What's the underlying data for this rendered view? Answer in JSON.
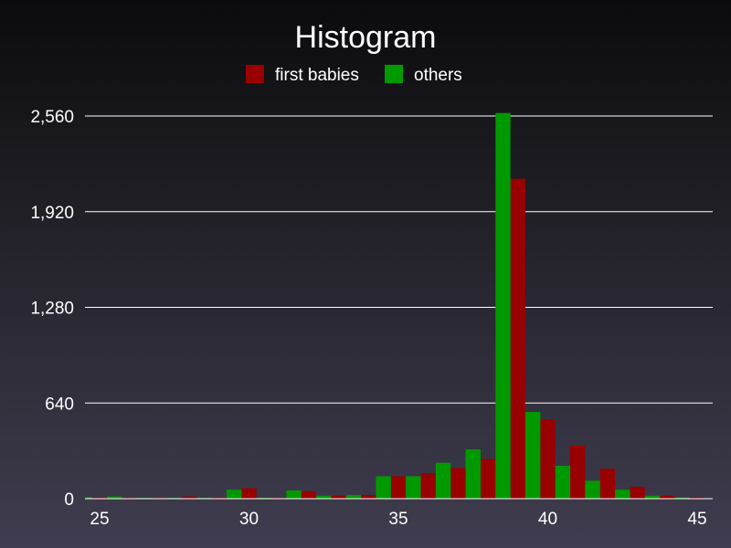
{
  "chart_data": {
    "type": "bar",
    "title": "Histogram",
    "xlabel": "",
    "ylabel": "",
    "xlim": [
      25,
      45
    ],
    "ylim": [
      0,
      2560
    ],
    "x_ticks": [
      25,
      30,
      35,
      40,
      45
    ],
    "y_ticks": [
      0,
      640,
      1280,
      1920,
      2560
    ],
    "y_tick_labels": [
      "0",
      "640",
      "1,280",
      "1,920",
      "2,560"
    ],
    "grid": true,
    "legend": "top-center",
    "series": [
      {
        "name": "first babies",
        "color": "#990000",
        "x": [
          25,
          26,
          27,
          28,
          29,
          30,
          31,
          32,
          33,
          34,
          35,
          36,
          37,
          38,
          39,
          40,
          41,
          42,
          43,
          44,
          45
        ],
        "values": [
          8,
          5,
          5,
          15,
          8,
          70,
          5,
          50,
          20,
          25,
          150,
          170,
          205,
          265,
          2140,
          530,
          355,
          200,
          80,
          20,
          10
        ]
      },
      {
        "name": "others",
        "color": "#009900",
        "x": [
          24.5,
          25.5,
          26.5,
          27.5,
          28.5,
          29.5,
          30.5,
          31.5,
          32.5,
          33.5,
          34.5,
          35.5,
          36.5,
          37.5,
          38.5,
          39.5,
          40.5,
          41.5,
          42.5,
          43.5,
          44.5
        ],
        "values": [
          10,
          15,
          5,
          5,
          5,
          60,
          5,
          55,
          20,
          25,
          150,
          150,
          240,
          330,
          2580,
          580,
          220,
          120,
          60,
          20,
          8
        ]
      }
    ]
  }
}
